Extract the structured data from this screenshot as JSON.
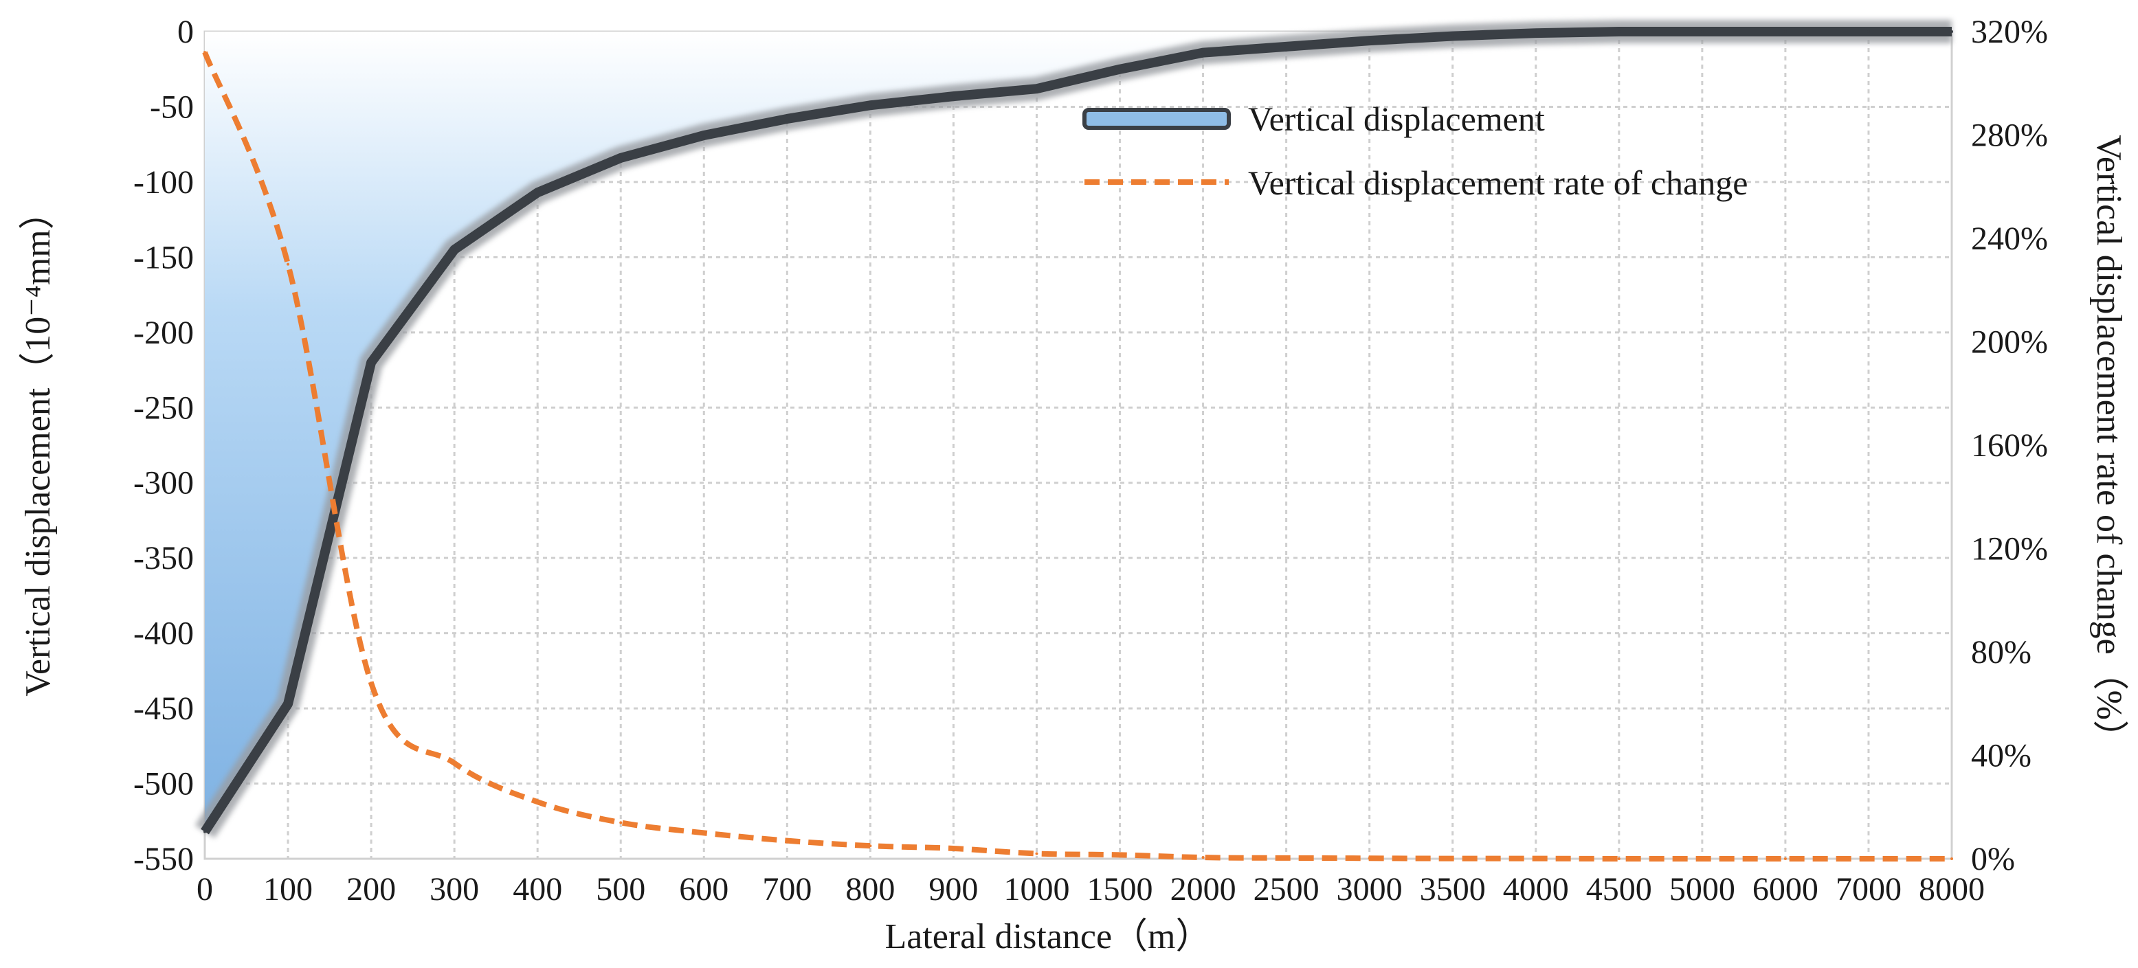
{
  "chart_data": {
    "type": "area+line",
    "title": "",
    "xlabel": "Lateral distance（m）",
    "ylabel": "Vertical displacement（10⁻⁴mm）",
    "y2label": "Vertical displacement rate of change（%）",
    "categories": [
      "0",
      "100",
      "200",
      "300",
      "400",
      "500",
      "600",
      "700",
      "800",
      "900",
      "1000",
      "1500",
      "2000",
      "2500",
      "3000",
      "3500",
      "4000",
      "4500",
      "5000",
      "6000",
      "7000",
      "8000"
    ],
    "ylim": [
      -550,
      0
    ],
    "yticks": [
      "0",
      "-50",
      "-100",
      "-150",
      "-200",
      "-250",
      "-300",
      "-350",
      "-400",
      "-450",
      "-500",
      "-550"
    ],
    "y2lim": [
      0,
      320
    ],
    "y2ticks": [
      "0%",
      "40%",
      "80%",
      "120%",
      "160%",
      "200%",
      "240%",
      "280%",
      "320%"
    ],
    "grid": true,
    "legend_position": "top-center",
    "series": [
      {
        "name": "Vertical displacement",
        "kind": "area",
        "axis": "left",
        "color": "#3a3f45",
        "fill_color": "#9cc8ef",
        "values": [
          -532,
          -447,
          -220,
          -145,
          -107,
          -84,
          -69,
          -58,
          -49,
          -43,
          -38,
          -25,
          -14,
          -10,
          -6,
          -3,
          -1,
          0,
          0,
          0,
          0,
          0
        ]
      },
      {
        "name": "Vertical displacement rate of change",
        "kind": "line",
        "axis": "right",
        "color": "#ed7d31",
        "dashed": true,
        "values": [
          312,
          230,
          68,
          37,
          22,
          14,
          10,
          7,
          5,
          4,
          2,
          1.5,
          0.5,
          0.3,
          0.2,
          0.1,
          0.1,
          0,
          0,
          0,
          0,
          0
        ]
      }
    ]
  }
}
